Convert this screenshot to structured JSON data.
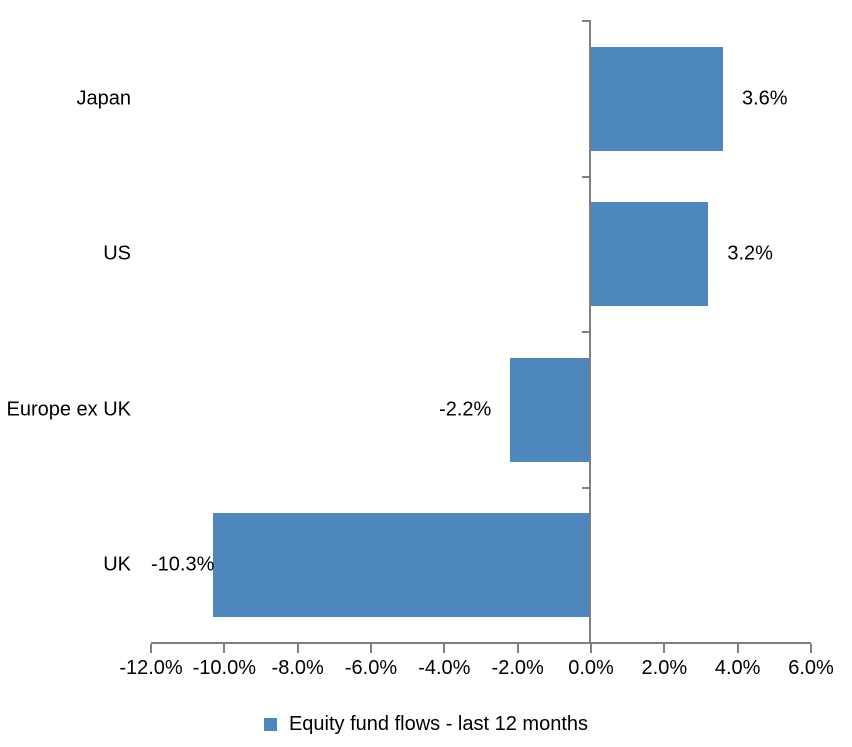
{
  "chart_data": {
    "type": "bar",
    "orientation": "horizontal",
    "categories": [
      "Japan",
      "US",
      "Europe ex UK",
      "UK"
    ],
    "values": [
      3.6,
      3.2,
      -2.2,
      -10.3
    ],
    "data_labels": [
      "3.6%",
      "3.2%",
      "-2.2%",
      "-10.3%"
    ],
    "series": [
      {
        "name": "Equity fund flows - last 12 months",
        "values": [
          3.6,
          3.2,
          -2.2,
          -10.3
        ]
      }
    ],
    "title": "",
    "xlabel": "",
    "ylabel": "",
    "xlim": [
      -12,
      6
    ],
    "x_tick_step": 2,
    "x_tick_labels": [
      "-12.0%",
      "-10.0%",
      "-8.0%",
      "-6.0%",
      "-4.0%",
      "-2.0%",
      "0.0%",
      "2.0%",
      "4.0%",
      "6.0%"
    ],
    "grid": false,
    "legend_position": "bottom",
    "bar_color": "#4E86BE",
    "axis_color": "#808080",
    "text_color": "#000000"
  },
  "legend": {
    "label": "Equity fund flows - last 12 months",
    "marker_color": "#4E86BE"
  }
}
